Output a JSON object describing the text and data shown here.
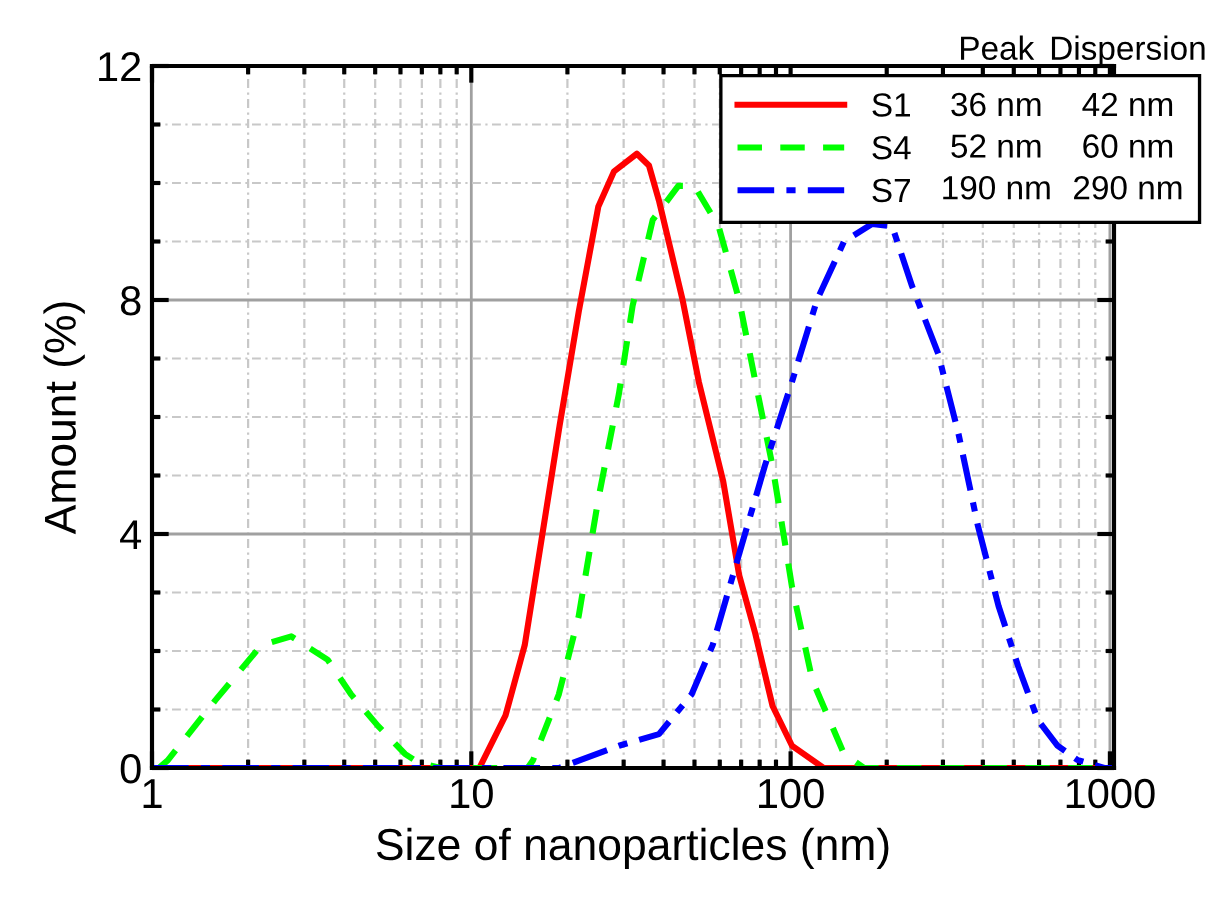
{
  "chart_data": {
    "type": "line",
    "xlabel": "Size of nanoparticles (nm)",
    "ylabel": "Amount (%)",
    "log": "x",
    "xlim": [
      1,
      1030
    ],
    "xticks": [
      1,
      10,
      100,
      1000
    ],
    "ylim": [
      0,
      12
    ],
    "yticks": [
      0,
      4,
      8,
      12
    ],
    "grid": true,
    "legend": "top right",
    "marker": "none",
    "series": [
      {
        "name": "S1",
        "color": "#ff0000",
        "line_style": "solid",
        "x": [
          1,
          10,
          10.6,
          12.8,
          14.7,
          16.7,
          18.9,
          21.7,
          25,
          28,
          33,
          36,
          38.7,
          45.9,
          51.6,
          61.5,
          69,
          77.5,
          87.8,
          101,
          127,
          1030
        ],
        "values": [
          0,
          0,
          0,
          0.9,
          2.1,
          4.0,
          5.85,
          7.8,
          9.6,
          10.2,
          10.5,
          10.3,
          9.7,
          8.0,
          6.6,
          4.9,
          3.3,
          2.3,
          1.06,
          0.38,
          0,
          0
        ]
      },
      {
        "name": "S4",
        "color": "#00ff00",
        "line_style": "dashed",
        "x": [
          1.05,
          1.12,
          1.58,
          2.2,
          2.73,
          3.55,
          4.2,
          5.1,
          6.2,
          6.8,
          8,
          15,
          15.6,
          18.8,
          21.7,
          25,
          29,
          32,
          37,
          44.5,
          50,
          59.5,
          69,
          79.6,
          87.8,
          101,
          117,
          147,
          170,
          1030
        ],
        "values": [
          0,
          0.13,
          1.16,
          2.1,
          2.25,
          1.85,
          1.26,
          0.72,
          0.24,
          0.1,
          0,
          0,
          0.13,
          1.26,
          2.6,
          4.6,
          6.4,
          7.9,
          9.37,
          9.95,
          9.95,
          9.26,
          8.0,
          6.3,
          5.16,
          3.1,
          1.5,
          0.24,
          0,
          0
        ]
      },
      {
        "name": "S7",
        "color": "#0000ff",
        "line_style": "dashdot",
        "x": [
          1,
          18.8,
          29,
          38.7,
          49,
          57,
          69,
          83,
          101,
          121,
          147,
          180,
          208,
          240,
          290,
          336,
          386,
          448,
          516,
          595,
          686,
          790,
          960,
          1030
        ],
        "values": [
          0,
          0,
          0.38,
          0.58,
          1.26,
          2.1,
          3.66,
          5.16,
          6.6,
          8.0,
          9.0,
          9.3,
          9.26,
          8.24,
          7.08,
          5.7,
          4.14,
          2.77,
          1.74,
          0.82,
          0.38,
          0.14,
          0,
          0
        ]
      }
    ],
    "annotations": [
      "Peak",
      "Dispersion",
      "36 nm",
      "42 nm",
      "52 nm",
      "60 nm",
      "190 nm",
      "290 nm"
    ]
  }
}
